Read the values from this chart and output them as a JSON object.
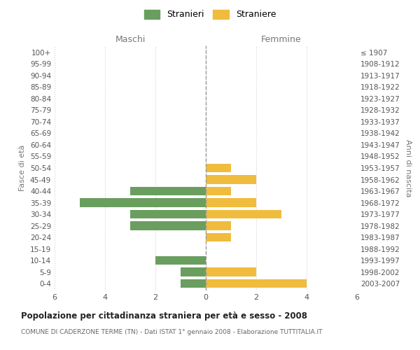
{
  "age_groups": [
    "100+",
    "95-99",
    "90-94",
    "85-89",
    "80-84",
    "75-79",
    "70-74",
    "65-69",
    "60-64",
    "55-59",
    "50-54",
    "45-49",
    "40-44",
    "35-39",
    "30-34",
    "25-29",
    "20-24",
    "15-19",
    "10-14",
    "5-9",
    "0-4"
  ],
  "birth_years": [
    "≤ 1907",
    "1908-1912",
    "1913-1917",
    "1918-1922",
    "1923-1927",
    "1928-1932",
    "1933-1937",
    "1938-1942",
    "1943-1947",
    "1948-1952",
    "1953-1957",
    "1958-1962",
    "1963-1967",
    "1968-1972",
    "1973-1977",
    "1978-1982",
    "1983-1987",
    "1988-1992",
    "1993-1997",
    "1998-2002",
    "2003-2007"
  ],
  "males": [
    0,
    0,
    0,
    0,
    0,
    0,
    0,
    0,
    0,
    0,
    0,
    0,
    3,
    5,
    3,
    3,
    0,
    0,
    2,
    1,
    1
  ],
  "females": [
    0,
    0,
    0,
    0,
    0,
    0,
    0,
    0,
    0,
    0,
    1,
    2,
    1,
    2,
    3,
    1,
    1,
    0,
    0,
    2,
    4
  ],
  "male_color": "#6a9e5f",
  "female_color": "#f0bc3d",
  "title": "Popolazione per cittadinanza straniera per età e sesso - 2008",
  "subtitle": "COMUNE DI CADERZONE TERME (TN) - Dati ISTAT 1° gennaio 2008 - Elaborazione TUTTITALIA.IT",
  "xlabel_left": "Maschi",
  "xlabel_right": "Femmine",
  "ylabel_left": "Fasce di età",
  "ylabel_right": "Anni di nascita",
  "legend_male": "Stranieri",
  "legend_female": "Straniere",
  "xlim": 6,
  "background_color": "#ffffff",
  "grid_color": "#d0d0d0"
}
